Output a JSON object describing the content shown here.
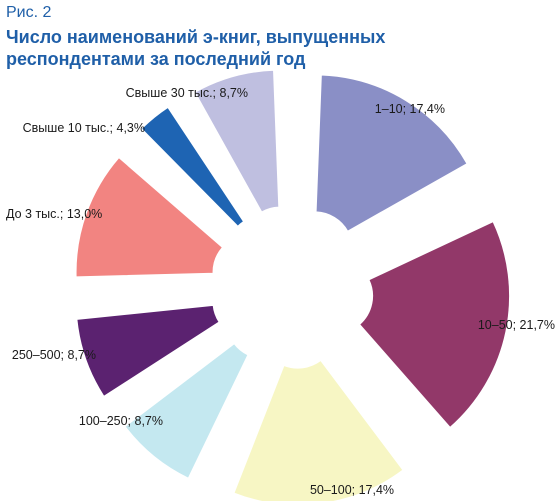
{
  "figure_label": "Рис. 2",
  "title_lines": [
    "Число наименований э-книг, выпущенных",
    "респондентами за последний год"
  ],
  "chart_data": {
    "type": "pie",
    "title": "Число наименований э-книг, выпущенных респондентами за последний год",
    "legend": "none",
    "slices": [
      {
        "label": "1–10; 17,4%",
        "category": "1–10",
        "value": 17.4,
        "color": "#8a8fc6"
      },
      {
        "label": "10–50; 21,7%",
        "category": "10–50",
        "value": 21.7,
        "color": "#923869"
      },
      {
        "label": "50–100; 17,4%",
        "category": "50–100",
        "value": 17.4,
        "color": "#f7f6c4"
      },
      {
        "label": "100–250; 8,7%",
        "category": "100–250",
        "value": 8.7,
        "color": "#c4e8f0"
      },
      {
        "label": "250–500; 8,7%",
        "category": "250–500",
        "value": 8.7,
        "color": "#5b2270"
      },
      {
        "label": "До 3 тыс.; 13,0%",
        "category": "До 3 тыс.",
        "value": 13.0,
        "color": "#f28481"
      },
      {
        "label": "Свыше 10 тыс.; 4,3%",
        "category": "Свыше 10 тыс.",
        "value": 4.3,
        "color": "#1e64b3"
      },
      {
        "label": "Свыше 30 тыс.; 8,7%",
        "category": "Свыше 30 тыс.",
        "value": 8.7,
        "color": "#bfbfe0"
      }
    ]
  }
}
